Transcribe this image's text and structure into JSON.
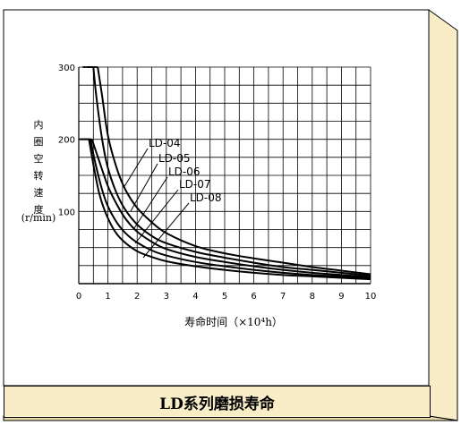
{
  "caption": "LD系列磨损寿命",
  "chart_data": {
    "type": "line",
    "xlabel": "寿命时间（×10⁴h）",
    "ylabel_chars": [
      "内",
      "圈",
      "空",
      "转",
      "速",
      "度"
    ],
    "ylabel_unit": "(r/min)",
    "xlim": [
      0,
      10
    ],
    "ylim": [
      0,
      300
    ],
    "x_ticks": [
      "0",
      "1",
      "2",
      "3",
      "4",
      "5",
      "6",
      "7",
      "8",
      "9",
      "10"
    ],
    "y_ticks": [
      "100",
      "200",
      "300"
    ],
    "grid": true,
    "series": [
      {
        "name": "LD-04",
        "points": [
          [
            0.65,
            300
          ],
          [
            0.8,
            260
          ],
          [
            1.0,
            205
          ],
          [
            1.3,
            160
          ],
          [
            1.6,
            130
          ],
          [
            2.0,
            105
          ],
          [
            2.5,
            85
          ],
          [
            3.0,
            70
          ],
          [
            4.0,
            52
          ],
          [
            5.0,
            42
          ],
          [
            6.0,
            35
          ],
          [
            7.0,
            29
          ],
          [
            8.0,
            23
          ],
          [
            9.0,
            18
          ],
          [
            10,
            13
          ]
        ]
      },
      {
        "name": "LD-05",
        "points": [
          [
            0.5,
            300
          ],
          [
            0.6,
            260
          ],
          [
            0.8,
            200
          ],
          [
            1.0,
            160
          ],
          [
            1.3,
            125
          ],
          [
            1.6,
            102
          ],
          [
            2.0,
            82
          ],
          [
            2.5,
            66
          ],
          [
            3.0,
            56
          ],
          [
            4.0,
            44
          ],
          [
            5.0,
            36
          ],
          [
            6.0,
            29
          ],
          [
            7.0,
            23
          ],
          [
            8.0,
            19
          ],
          [
            9.0,
            15
          ],
          [
            10,
            11
          ]
        ]
      },
      {
        "name": "LD-06",
        "points": [
          [
            0.45,
            200
          ],
          [
            0.7,
            170
          ],
          [
            1.0,
            135
          ],
          [
            1.3,
            110
          ],
          [
            1.6,
            90
          ],
          [
            2.0,
            72
          ],
          [
            2.5,
            58
          ],
          [
            3.0,
            48
          ],
          [
            4.0,
            37
          ],
          [
            5.0,
            30
          ],
          [
            6.0,
            24
          ],
          [
            7.0,
            19
          ],
          [
            8.0,
            15
          ],
          [
            9.0,
            12
          ],
          [
            10,
            9
          ]
        ]
      },
      {
        "name": "LD-07",
        "points": [
          [
            0.4,
            200
          ],
          [
            0.55,
            170
          ],
          [
            0.8,
            130
          ],
          [
            1.0,
            107
          ],
          [
            1.3,
            85
          ],
          [
            1.6,
            70
          ],
          [
            2.0,
            57
          ],
          [
            2.5,
            46
          ],
          [
            3.0,
            39
          ],
          [
            4.0,
            30
          ],
          [
            5.0,
            24
          ],
          [
            6.0,
            19
          ],
          [
            7.0,
            15
          ],
          [
            8.0,
            12
          ],
          [
            9.0,
            10
          ],
          [
            10,
            8
          ]
        ]
      },
      {
        "name": "LD-08",
        "points": [
          [
            0.35,
            200
          ],
          [
            0.5,
            165
          ],
          [
            0.7,
            125
          ],
          [
            0.9,
            100
          ],
          [
            1.2,
            75
          ],
          [
            1.5,
            60
          ],
          [
            2.0,
            45
          ],
          [
            2.5,
            37
          ],
          [
            3.0,
            31
          ],
          [
            4.0,
            24
          ],
          [
            5.0,
            19
          ],
          [
            6.0,
            15
          ],
          [
            7.0,
            12
          ],
          [
            8.0,
            10
          ],
          [
            9.0,
            8
          ],
          [
            10,
            6
          ]
        ]
      }
    ]
  }
}
